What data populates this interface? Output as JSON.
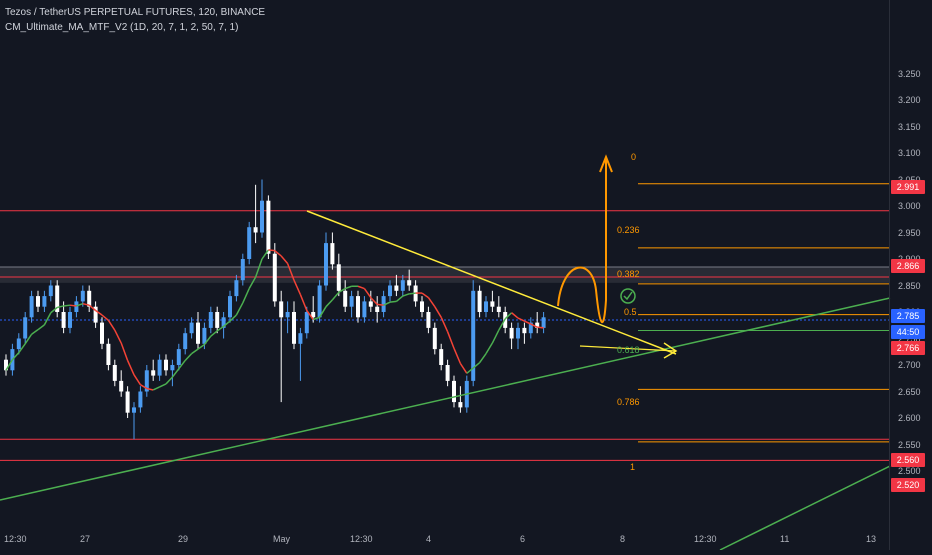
{
  "header": {
    "symbol_line": "Tezos / TetherUS PERPETUAL FUTURES, 120, BINANCE",
    "indicator_line": "CM_Ultimate_MA_MTF_V2 (1D, 20, 7, 1, 2, 50, 7, 1)"
  },
  "price_axis": {
    "ticks": [
      "3.250",
      "3.200",
      "3.150",
      "3.100",
      "3.050",
      "3.000",
      "2.950",
      "2.900",
      "2.850",
      "2.800",
      "2.750",
      "2.700",
      "2.650",
      "2.600",
      "2.550",
      "2.500"
    ]
  },
  "time_axis": {
    "ticks": [
      "12:30",
      "27",
      "29",
      "May",
      "12:30",
      "4",
      "6",
      "8",
      "12:30",
      "11",
      "13"
    ]
  },
  "badges": {
    "r1": {
      "label": "2.991",
      "color": "#f23645"
    },
    "r2": {
      "label": "2.866",
      "color": "#f23645"
    },
    "last": {
      "label": "2.785",
      "color": "#2962ff"
    },
    "timer": {
      "label": "44:50",
      "color": "#2962ff"
    },
    "ma": {
      "label": "2.766",
      "color": "#f23645"
    },
    "s1": {
      "label": "2.560",
      "color": "#f23645"
    },
    "s2": {
      "label": "2.520",
      "color": "#f23645"
    }
  },
  "fib": {
    "l0": "0",
    "l236": "0.236",
    "l382": "0.382",
    "l5": "0.5",
    "l618": "0.618",
    "l786": "0.786",
    "l1": "1"
  },
  "chart_data": {
    "type": "candlestick",
    "symbol": "Tezos / TetherUS PERPETUAL FUTURES",
    "interval": "120",
    "exchange": "BINANCE",
    "ylim": [
      2.47,
      3.28
    ],
    "colors": {
      "up": "#4c9bf0",
      "down": "#ffffff",
      "ma_up": "#4caf50",
      "ma_down": "#f44336",
      "background": "#131722"
    },
    "horizontal_levels": [
      2.991,
      2.866,
      2.785,
      2.766,
      2.56,
      2.52
    ],
    "resistance_zone": [
      2.855,
      2.885
    ],
    "fibonacci": [
      {
        "level": "0",
        "price": 3.042
      },
      {
        "level": "0.236",
        "price": 2.921
      },
      {
        "level": "0.382",
        "price": 2.853
      },
      {
        "level": "0.5",
        "price": 2.795
      },
      {
        "level": "0.618",
        "price": 2.765
      },
      {
        "level": "0.786",
        "price": 2.654
      },
      {
        "level": "1",
        "price": 2.555
      }
    ],
    "candles": [
      [
        2.71,
        2.72,
        2.68,
        2.69
      ],
      [
        2.69,
        2.74,
        2.68,
        2.73
      ],
      [
        2.73,
        2.76,
        2.72,
        2.75
      ],
      [
        2.75,
        2.8,
        2.74,
        2.79
      ],
      [
        2.79,
        2.84,
        2.78,
        2.83
      ],
      [
        2.83,
        2.84,
        2.8,
        2.81
      ],
      [
        2.81,
        2.84,
        2.8,
        2.83
      ],
      [
        2.83,
        2.86,
        2.82,
        2.85
      ],
      [
        2.85,
        2.86,
        2.79,
        2.8
      ],
      [
        2.8,
        2.82,
        2.76,
        2.77
      ],
      [
        2.77,
        2.81,
        2.76,
        2.8
      ],
      [
        2.8,
        2.83,
        2.79,
        2.82
      ],
      [
        2.82,
        2.85,
        2.81,
        2.84
      ],
      [
        2.84,
        2.85,
        2.8,
        2.81
      ],
      [
        2.81,
        2.82,
        2.77,
        2.78
      ],
      [
        2.78,
        2.79,
        2.73,
        2.74
      ],
      [
        2.74,
        2.75,
        2.69,
        2.7
      ],
      [
        2.7,
        2.71,
        2.66,
        2.67
      ],
      [
        2.67,
        2.69,
        2.64,
        2.65
      ],
      [
        2.65,
        2.66,
        2.6,
        2.61
      ],
      [
        2.61,
        2.63,
        2.56,
        2.62
      ],
      [
        2.62,
        2.66,
        2.61,
        2.65
      ],
      [
        2.65,
        2.7,
        2.64,
        2.69
      ],
      [
        2.69,
        2.71,
        2.67,
        2.68
      ],
      [
        2.68,
        2.72,
        2.67,
        2.71
      ],
      [
        2.71,
        2.72,
        2.68,
        2.69
      ],
      [
        2.69,
        2.71,
        2.66,
        2.7
      ],
      [
        2.7,
        2.74,
        2.69,
        2.73
      ],
      [
        2.73,
        2.77,
        2.72,
        2.76
      ],
      [
        2.76,
        2.79,
        2.75,
        2.78
      ],
      [
        2.78,
        2.8,
        2.73,
        2.74
      ],
      [
        2.74,
        2.78,
        2.73,
        2.77
      ],
      [
        2.77,
        2.81,
        2.76,
        2.8
      ],
      [
        2.8,
        2.81,
        2.76,
        2.77
      ],
      [
        2.77,
        2.8,
        2.75,
        2.79
      ],
      [
        2.79,
        2.84,
        2.78,
        2.83
      ],
      [
        2.83,
        2.87,
        2.82,
        2.86
      ],
      [
        2.86,
        2.91,
        2.85,
        2.9
      ],
      [
        2.9,
        2.97,
        2.89,
        2.96
      ],
      [
        2.96,
        3.04,
        2.93,
        2.95
      ],
      [
        2.95,
        3.05,
        2.94,
        3.01
      ],
      [
        3.01,
        3.02,
        2.9,
        2.91
      ],
      [
        2.91,
        2.93,
        2.81,
        2.82
      ],
      [
        2.82,
        2.84,
        2.63,
        2.79
      ],
      [
        2.79,
        2.82,
        2.76,
        2.8
      ],
      [
        2.8,
        2.82,
        2.73,
        2.74
      ],
      [
        2.74,
        2.77,
        2.67,
        2.76
      ],
      [
        2.76,
        2.81,
        2.75,
        2.8
      ],
      [
        2.8,
        2.83,
        2.78,
        2.79
      ],
      [
        2.79,
        2.86,
        2.78,
        2.85
      ],
      [
        2.85,
        2.95,
        2.84,
        2.93
      ],
      [
        2.93,
        2.95,
        2.88,
        2.89
      ],
      [
        2.89,
        2.91,
        2.83,
        2.84
      ],
      [
        2.84,
        2.86,
        2.8,
        2.81
      ],
      [
        2.81,
        2.84,
        2.79,
        2.83
      ],
      [
        2.83,
        2.84,
        2.78,
        2.79
      ],
      [
        2.79,
        2.83,
        2.78,
        2.82
      ],
      [
        2.82,
        2.84,
        2.8,
        2.81
      ],
      [
        2.81,
        2.83,
        2.78,
        2.8
      ],
      [
        2.8,
        2.84,
        2.79,
        2.83
      ],
      [
        2.83,
        2.86,
        2.82,
        2.85
      ],
      [
        2.85,
        2.87,
        2.83,
        2.84
      ],
      [
        2.84,
        2.87,
        2.83,
        2.86
      ],
      [
        2.86,
        2.88,
        2.84,
        2.85
      ],
      [
        2.85,
        2.86,
        2.81,
        2.82
      ],
      [
        2.82,
        2.83,
        2.79,
        2.8
      ],
      [
        2.8,
        2.81,
        2.76,
        2.77
      ],
      [
        2.77,
        2.78,
        2.72,
        2.73
      ],
      [
        2.73,
        2.74,
        2.69,
        2.7
      ],
      [
        2.7,
        2.71,
        2.66,
        2.67
      ],
      [
        2.67,
        2.68,
        2.62,
        2.63
      ],
      [
        2.63,
        2.66,
        2.61,
        2.62
      ],
      [
        2.62,
        2.68,
        2.61,
        2.67
      ],
      [
        2.67,
        2.86,
        2.66,
        2.84
      ],
      [
        2.84,
        2.85,
        2.79,
        2.8
      ],
      [
        2.8,
        2.83,
        2.79,
        2.82
      ],
      [
        2.82,
        2.84,
        2.8,
        2.81
      ],
      [
        2.81,
        2.83,
        2.79,
        2.8
      ],
      [
        2.8,
        2.81,
        2.76,
        2.77
      ],
      [
        2.77,
        2.78,
        2.73,
        2.75
      ],
      [
        2.75,
        2.78,
        2.73,
        2.77
      ],
      [
        2.77,
        2.78,
        2.74,
        2.76
      ],
      [
        2.76,
        2.79,
        2.75,
        2.78
      ],
      [
        2.78,
        2.8,
        2.76,
        2.77
      ],
      [
        2.77,
        2.8,
        2.76,
        2.79
      ]
    ]
  }
}
